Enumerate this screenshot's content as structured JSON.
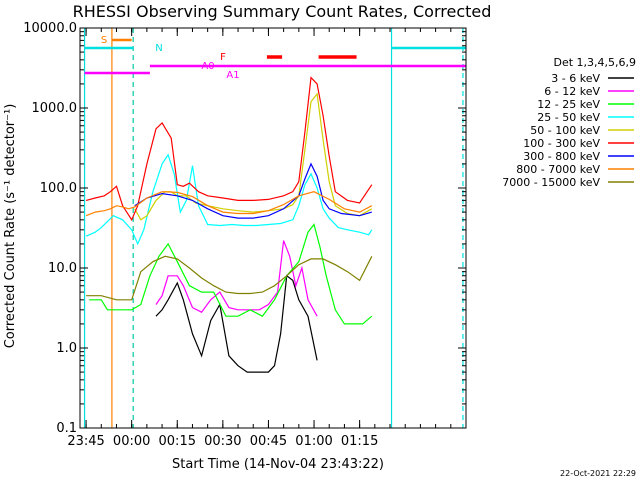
{
  "chart_data": {
    "type": "line",
    "title": "RHESSI Observing Summary Count Rates, Corrected",
    "xlabel": "Start Time (14-Nov-04 23:43:22)",
    "ylabel": "Corrected Count Rate (s⁻¹ detector⁻¹)",
    "yscale": "log",
    "ylim": [
      0.1,
      10000.0
    ],
    "xlim_minutes_from_2345": [
      -2,
      125
    ],
    "x_ticks": [
      {
        "t": 0,
        "label": "23:45"
      },
      {
        "t": 15,
        "label": "00:00"
      },
      {
        "t": 30,
        "label": "00:15"
      },
      {
        "t": 45,
        "label": "00:30"
      },
      {
        "t": 60,
        "label": "00:45"
      },
      {
        "t": 75,
        "label": "01:00"
      },
      {
        "t": 90,
        "label": "01:15"
      }
    ],
    "y_ticks": [
      {
        "v": 0.1,
        "label": "0.1"
      },
      {
        "v": 1,
        "label": "1.0"
      },
      {
        "v": 10,
        "label": "10.0"
      },
      {
        "v": 100,
        "label": "100.0"
      },
      {
        "v": 1000,
        "label": "1000.0"
      },
      {
        "v": 10000,
        "label": "10000.0"
      }
    ],
    "legend_title": "Det 1,3,4,5,6,9",
    "legend_position": "right",
    "series": [
      {
        "name": "3 - 6 keV",
        "color": "#000000",
        "x": [
          23,
          25,
          27,
          30,
          32,
          35,
          38,
          41,
          44,
          47,
          50,
          53,
          57,
          60,
          62,
          64,
          66,
          68,
          70,
          73,
          76
        ],
        "y": [
          2.5,
          3.0,
          4.0,
          6.5,
          4.0,
          1.5,
          0.8,
          2.2,
          3.5,
          0.8,
          0.6,
          0.5,
          0.5,
          0.5,
          0.6,
          1.5,
          8.0,
          7.0,
          4.0,
          2.5,
          0.7
        ]
      },
      {
        "name": "6 - 12 keV",
        "color": "#ff00ff",
        "x": [
          23,
          25,
          27,
          30,
          32,
          35,
          38,
          41,
          44,
          47,
          50,
          53,
          57,
          60,
          63,
          65,
          67,
          69,
          71,
          73,
          76
        ],
        "y": [
          3.5,
          4.5,
          8.0,
          8.0,
          6.0,
          3.2,
          2.8,
          4.0,
          5.0,
          3.2,
          3.0,
          3.0,
          3.0,
          3.5,
          5.0,
          22,
          14,
          6.0,
          10,
          4.0,
          2.5
        ]
      },
      {
        "name": "12 - 25 keV",
        "color": "#00ff00",
        "x": [
          1,
          3,
          5,
          7,
          9,
          12,
          15,
          18,
          21,
          24,
          27,
          30,
          34,
          38,
          42,
          46,
          50,
          54,
          58,
          62,
          66,
          70,
          73,
          75,
          77,
          79,
          82,
          85,
          88,
          91,
          94
        ],
        "y": [
          4.0,
          4.0,
          4.0,
          3.0,
          3.0,
          3.0,
          3.0,
          3.5,
          8.0,
          14,
          20,
          12,
          6.0,
          5.0,
          5.0,
          2.5,
          2.5,
          3.0,
          2.5,
          4.0,
          8.0,
          12,
          28,
          35,
          18,
          8.0,
          3.0,
          2.0,
          2.0,
          2.0,
          2.5
        ]
      },
      {
        "name": "25 - 50 keV",
        "color": "#00ffff",
        "x": [
          0,
          3,
          5,
          7,
          9,
          12,
          15,
          17,
          19,
          22,
          25,
          27,
          29,
          31,
          33,
          35,
          37,
          40,
          44,
          48,
          52,
          56,
          60,
          64,
          68,
          70,
          72,
          74,
          76,
          78,
          80,
          83,
          86,
          90,
          93,
          94
        ],
        "y": [
          25,
          28,
          32,
          38,
          45,
          40,
          30,
          20,
          30,
          90,
          200,
          260,
          150,
          50,
          70,
          190,
          60,
          35,
          34,
          35,
          34,
          34,
          35,
          36,
          40,
          60,
          110,
          150,
          100,
          55,
          42,
          32,
          30,
          28,
          26,
          30
        ]
      },
      {
        "name": "50 - 100 keV",
        "color": "#d0d000",
        "x": [
          16,
          18,
          20,
          23,
          26,
          28,
          30,
          33,
          36,
          40,
          45,
          50,
          55,
          60,
          65,
          68,
          70,
          72,
          74,
          76,
          78,
          80,
          82,
          86,
          90,
          94
        ],
        "y": [
          55,
          40,
          45,
          70,
          90,
          90,
          80,
          80,
          65,
          60,
          55,
          52,
          50,
          52,
          55,
          62,
          80,
          300,
          1200,
          1500,
          400,
          120,
          60,
          48,
          45,
          55
        ]
      },
      {
        "name": "100 - 300 keV",
        "color": "#ff0000",
        "x": [
          0,
          3,
          6,
          8,
          10,
          12,
          15,
          17,
          20,
          23,
          25,
          28,
          30,
          32,
          34,
          37,
          40,
          45,
          50,
          55,
          60,
          65,
          68,
          70,
          72,
          74,
          76,
          78,
          80,
          82,
          86,
          90,
          94
        ],
        "y": [
          70,
          75,
          80,
          90,
          105,
          60,
          40,
          60,
          200,
          550,
          650,
          420,
          110,
          105,
          115,
          90,
          80,
          75,
          70,
          70,
          72,
          80,
          90,
          120,
          500,
          2400,
          2000,
          800,
          250,
          90,
          70,
          65,
          110
        ]
      },
      {
        "name": "300 - 800 keV",
        "color": "#0000ff",
        "x": [
          16,
          20,
          25,
          30,
          35,
          40,
          45,
          50,
          55,
          60,
          65,
          70,
          72,
          74,
          76,
          78,
          80,
          84,
          90,
          94
        ],
        "y": [
          60,
          75,
          85,
          80,
          70,
          55,
          45,
          42,
          42,
          45,
          55,
          80,
          130,
          200,
          140,
          70,
          55,
          48,
          45,
          50
        ]
      },
      {
        "name": "800 - 7000 keV",
        "color": "#ff8000",
        "x": [
          0,
          3,
          6,
          8,
          10,
          12,
          14,
          16,
          20,
          25,
          30,
          35,
          40,
          45,
          50,
          55,
          60,
          65,
          70,
          75,
          80,
          85,
          90,
          94
        ],
        "y": [
          45,
          50,
          52,
          55,
          60,
          58,
          55,
          58,
          75,
          90,
          88,
          78,
          60,
          50,
          48,
          48,
          52,
          62,
          80,
          90,
          72,
          55,
          50,
          60
        ]
      },
      {
        "name": "7000 - 15000 keV",
        "color": "#808000",
        "x": [
          0,
          5,
          10,
          15,
          18,
          22,
          26,
          30,
          34,
          38,
          42,
          46,
          50,
          54,
          58,
          62,
          66,
          70,
          74,
          78,
          82,
          86,
          90,
          94
        ],
        "y": [
          4.5,
          4.5,
          4.0,
          4.0,
          9.0,
          12,
          14,
          13,
          10,
          7.5,
          6.0,
          5.0,
          4.8,
          4.8,
          5.0,
          6.0,
          8.0,
          11,
          13,
          13,
          11,
          9.0,
          7.0,
          14
        ]
      }
    ],
    "annotations": {
      "S": "S",
      "N": "N",
      "F": "F",
      "A0": "A0",
      "A1": "A1"
    }
  },
  "footer": {
    "date": "22-Oct-2021 22:29"
  }
}
